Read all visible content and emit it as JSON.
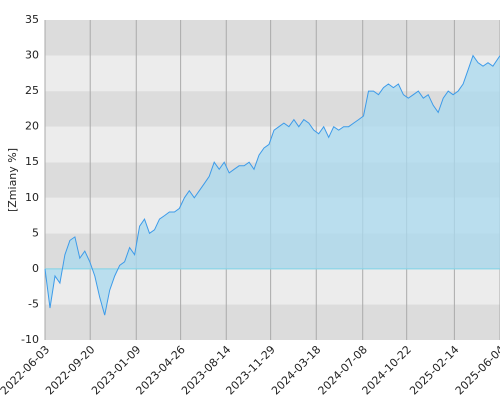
{
  "chart_data": {
    "type": "area",
    "y_label": "[Zmiany %]",
    "x": [
      "2022-06-03",
      "2022-06-15",
      "2022-06-27",
      "2022-07-09",
      "2022-07-21",
      "2022-08-02",
      "2022-08-14",
      "2022-08-26",
      "2022-09-07",
      "2022-09-19",
      "2022-10-01",
      "2022-10-13",
      "2022-10-25",
      "2022-11-06",
      "2022-11-18",
      "2022-11-30",
      "2022-12-12",
      "2022-12-24",
      "2023-01-05",
      "2023-01-17",
      "2023-01-29",
      "2023-02-10",
      "2023-02-22",
      "2023-03-06",
      "2023-03-18",
      "2023-03-30",
      "2023-04-11",
      "2023-04-23",
      "2023-05-05",
      "2023-05-17",
      "2023-05-29",
      "2023-06-10",
      "2023-06-22",
      "2023-07-04",
      "2023-07-16",
      "2023-07-28",
      "2023-08-09",
      "2023-08-21",
      "2023-09-02",
      "2023-09-14",
      "2023-09-26",
      "2023-10-08",
      "2023-10-20",
      "2023-11-01",
      "2023-11-13",
      "2023-11-25",
      "2023-12-07",
      "2023-12-19",
      "2023-12-31",
      "2024-01-12",
      "2024-01-24",
      "2024-02-05",
      "2024-02-17",
      "2024-02-29",
      "2024-03-12",
      "2024-03-24",
      "2024-04-05",
      "2024-04-17",
      "2024-04-29",
      "2024-05-11",
      "2024-05-23",
      "2024-06-04",
      "2024-06-16",
      "2024-06-28",
      "2024-07-10",
      "2024-07-22",
      "2024-08-03",
      "2024-08-15",
      "2024-08-27",
      "2024-09-08",
      "2024-09-20",
      "2024-10-02",
      "2024-10-14",
      "2024-10-26",
      "2024-11-07",
      "2024-11-19",
      "2024-12-01",
      "2024-12-13",
      "2024-12-25",
      "2025-01-06",
      "2025-01-18",
      "2025-01-30",
      "2025-02-11",
      "2025-02-23",
      "2025-03-07",
      "2025-03-19",
      "2025-03-31",
      "2025-04-12",
      "2025-04-24",
      "2025-05-06",
      "2025-05-18",
      "2025-06-04"
    ],
    "series": [
      {
        "color": "#3d9be9",
        "fill": "#a9d9ef",
        "values": [
          0,
          -5.5,
          -1,
          -2,
          2,
          4,
          4.5,
          1.5,
          2.5,
          1,
          -1,
          -4,
          -6.5,
          -3,
          -1,
          0.5,
          1,
          3,
          2,
          6,
          7,
          5,
          5.5,
          7,
          7.5,
          8,
          8,
          8.5,
          10,
          11,
          10,
          11,
          12,
          13,
          15,
          14,
          15,
          13.5,
          14,
          14.5,
          14.5,
          15,
          14,
          16,
          17,
          17.5,
          19.5,
          20,
          20.5,
          20,
          21,
          20,
          21,
          20.5,
          19.5,
          19,
          20,
          18.5,
          20,
          19.5,
          20,
          20,
          20.5,
          21,
          21.5,
          25,
          25,
          24.5,
          25.5,
          26,
          25.5,
          26,
          24.5,
          24,
          24.5,
          25,
          24,
          24.5,
          23,
          22,
          24,
          25,
          24.5,
          25,
          26,
          28,
          30,
          29,
          28.5,
          29,
          28.5,
          30
        ]
      }
    ],
    "xlim": [
      "2022-06-03",
      "2025-06-04"
    ],
    "xticks": [
      "2022-06-03",
      "2022-09-20",
      "2023-01-09",
      "2023-04-26",
      "2023-08-14",
      "2023-11-29",
      "2024-03-18",
      "2024-07-08",
      "2024-10-22",
      "2025-02-14",
      "2025-06-04"
    ],
    "ylim": [
      -10,
      35
    ],
    "yticks": [
      -10,
      -5,
      0,
      5,
      10,
      15,
      20,
      25,
      30,
      35
    ],
    "grid": true
  }
}
